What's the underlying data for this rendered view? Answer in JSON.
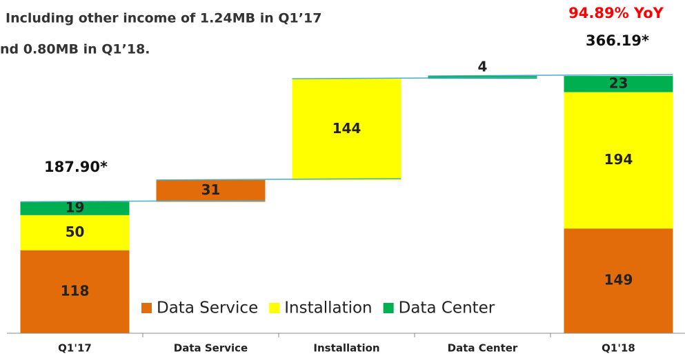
{
  "chart_data": {
    "type": "waterfall",
    "notes": [
      "Including other income of 1.24MB in Q1’17",
      "nd 0.80MB in Q1’18."
    ],
    "yoy_label": "94.89% YoY",
    "total_labels": [
      "187.90*",
      "366.19*"
    ],
    "categories": [
      "Q1'17",
      "Data Service",
      "Installation",
      "Data Center",
      "Q1'18"
    ],
    "series": [
      {
        "name": "Data Service",
        "color": "#e36c0a",
        "values": [
          118,
          31,
          null,
          null,
          149
        ]
      },
      {
        "name": "Installation",
        "color": "#ffff00",
        "values": [
          50,
          null,
          144,
          null,
          194
        ]
      },
      {
        "name": "Data Center",
        "color": "#00b050",
        "values": [
          19,
          null,
          null,
          4,
          23
        ]
      }
    ],
    "ylim": [
      0,
      370
    ],
    "connector_color": "#4bacc6"
  }
}
